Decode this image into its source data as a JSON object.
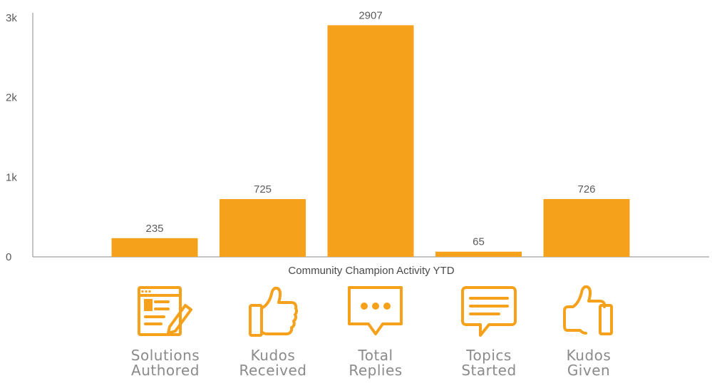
{
  "chart_data": {
    "type": "bar",
    "categories": [
      "Solutions Authored",
      "Kudos Received",
      "Total Replies",
      "Topics Started",
      "Kudos Given"
    ],
    "values": [
      235,
      725,
      2907,
      65,
      726
    ],
    "xlabel": "Community Champion Activity YTD",
    "ylabel": "",
    "ylim": [
      0,
      3000
    ],
    "yticks": [
      0,
      1000,
      2000,
      3000
    ],
    "ytick_labels": [
      "0",
      "1k",
      "2k",
      "3k"
    ],
    "grid": false,
    "bar_color": "#f5a11c"
  },
  "categories_display": [
    {
      "line1": "Solutions",
      "line2": "Authored",
      "icon": "document-pencil-icon"
    },
    {
      "line1": "Kudos",
      "line2": "Received",
      "icon": "thumbs-up-icon"
    },
    {
      "line1": "Total",
      "line2": "Replies",
      "icon": "chat-dots-icon"
    },
    {
      "line1": "Topics",
      "line2": "Started",
      "icon": "chat-lines-icon"
    },
    {
      "line1": "Kudos",
      "line2": "Given",
      "icon": "thumbs-up-icon"
    }
  ],
  "icon_color": "#f5a11c"
}
